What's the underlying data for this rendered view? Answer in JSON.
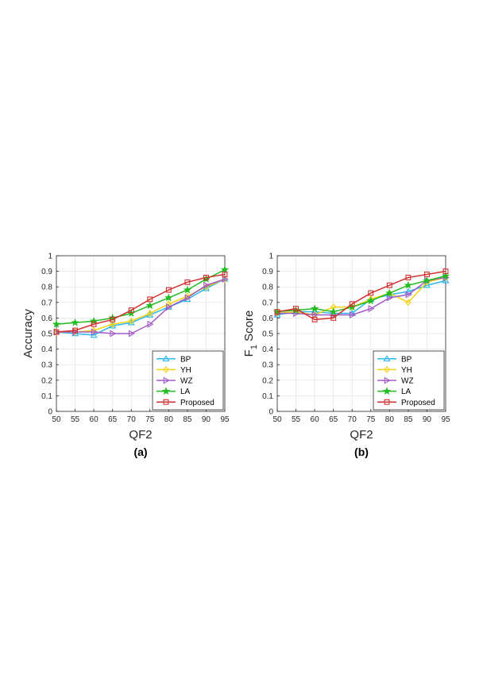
{
  "chart_data": [
    {
      "type": "line",
      "panel_label": "(a)",
      "xlabel": "QF2",
      "ylabel": "Accuracy",
      "xlim": [
        50,
        95
      ],
      "ylim": [
        0,
        1
      ],
      "xticks": [
        "50",
        "55",
        "60",
        "65",
        "70",
        "75",
        "80",
        "85",
        "90",
        "95"
      ],
      "yticks": [
        "0",
        "0.1",
        "0.2",
        "0.3",
        "0.4",
        "0.5",
        "0.6",
        "0.7",
        "0.8",
        "0.9",
        "1"
      ],
      "grid": true,
      "legend_position": "bottom-right",
      "x": [
        50,
        55,
        60,
        65,
        70,
        75,
        80,
        85,
        90,
        95
      ],
      "series": [
        {
          "name": "BP",
          "color": "#2ab7ea",
          "marker": "triangle-up",
          "values": [
            0.51,
            0.5,
            0.49,
            0.55,
            0.57,
            0.62,
            0.67,
            0.72,
            0.79,
            0.85
          ]
        },
        {
          "name": "YH",
          "color": "#f5d20f",
          "marker": "diamond",
          "values": [
            0.51,
            0.51,
            0.52,
            0.56,
            0.58,
            0.63,
            0.69,
            0.74,
            0.8,
            0.85
          ]
        },
        {
          "name": "WZ",
          "color": "#a35bc5",
          "marker": "triangle-right",
          "values": [
            0.51,
            0.51,
            0.51,
            0.5,
            0.5,
            0.56,
            0.67,
            0.73,
            0.81,
            0.85
          ]
        },
        {
          "name": "LA",
          "color": "#22bb22",
          "marker": "star",
          "values": [
            0.56,
            0.57,
            0.58,
            0.6,
            0.63,
            0.68,
            0.73,
            0.78,
            0.85,
            0.91
          ]
        },
        {
          "name": "Proposed",
          "color": "#d22f2f",
          "marker": "square",
          "values": [
            0.51,
            0.52,
            0.56,
            0.59,
            0.65,
            0.72,
            0.78,
            0.83,
            0.86,
            0.88
          ]
        }
      ]
    },
    {
      "type": "line",
      "panel_label": "(b)",
      "xlabel": "QF2",
      "ylabel": "F",
      "ylabel_sub": "1",
      "ylabel_suffix": " Score",
      "xlim": [
        50,
        95
      ],
      "ylim": [
        0,
        1
      ],
      "xticks": [
        "50",
        "55",
        "60",
        "65",
        "70",
        "75",
        "80",
        "85",
        "90",
        "95"
      ],
      "yticks": [
        "0",
        "0.1",
        "0.2",
        "0.3",
        "0.4",
        "0.5",
        "0.6",
        "0.7",
        "0.8",
        "0.9",
        "1"
      ],
      "grid": true,
      "legend_position": "bottom-right",
      "x": [
        50,
        55,
        60,
        65,
        70,
        75,
        80,
        85,
        90,
        95
      ],
      "series": [
        {
          "name": "BP",
          "color": "#2ab7ea",
          "marker": "triangle-up",
          "values": [
            0.62,
            0.64,
            0.64,
            0.63,
            0.63,
            0.72,
            0.75,
            0.77,
            0.81,
            0.84
          ]
        },
        {
          "name": "YH",
          "color": "#f5d20f",
          "marker": "diamond",
          "values": [
            0.63,
            0.64,
            0.62,
            0.67,
            0.67,
            0.72,
            0.76,
            0.7,
            0.83,
            0.86
          ]
        },
        {
          "name": "WZ",
          "color": "#a35bc5",
          "marker": "triangle-right",
          "values": [
            0.63,
            0.63,
            0.62,
            0.62,
            0.62,
            0.66,
            0.73,
            0.75,
            0.84,
            0.86
          ]
        },
        {
          "name": "LA",
          "color": "#22bb22",
          "marker": "star",
          "values": [
            0.64,
            0.65,
            0.66,
            0.64,
            0.67,
            0.71,
            0.76,
            0.81,
            0.84,
            0.87
          ]
        },
        {
          "name": "Proposed",
          "color": "#d22f2f",
          "marker": "square",
          "values": [
            0.64,
            0.66,
            0.59,
            0.6,
            0.69,
            0.76,
            0.81,
            0.86,
            0.88,
            0.9
          ]
        }
      ]
    }
  ]
}
